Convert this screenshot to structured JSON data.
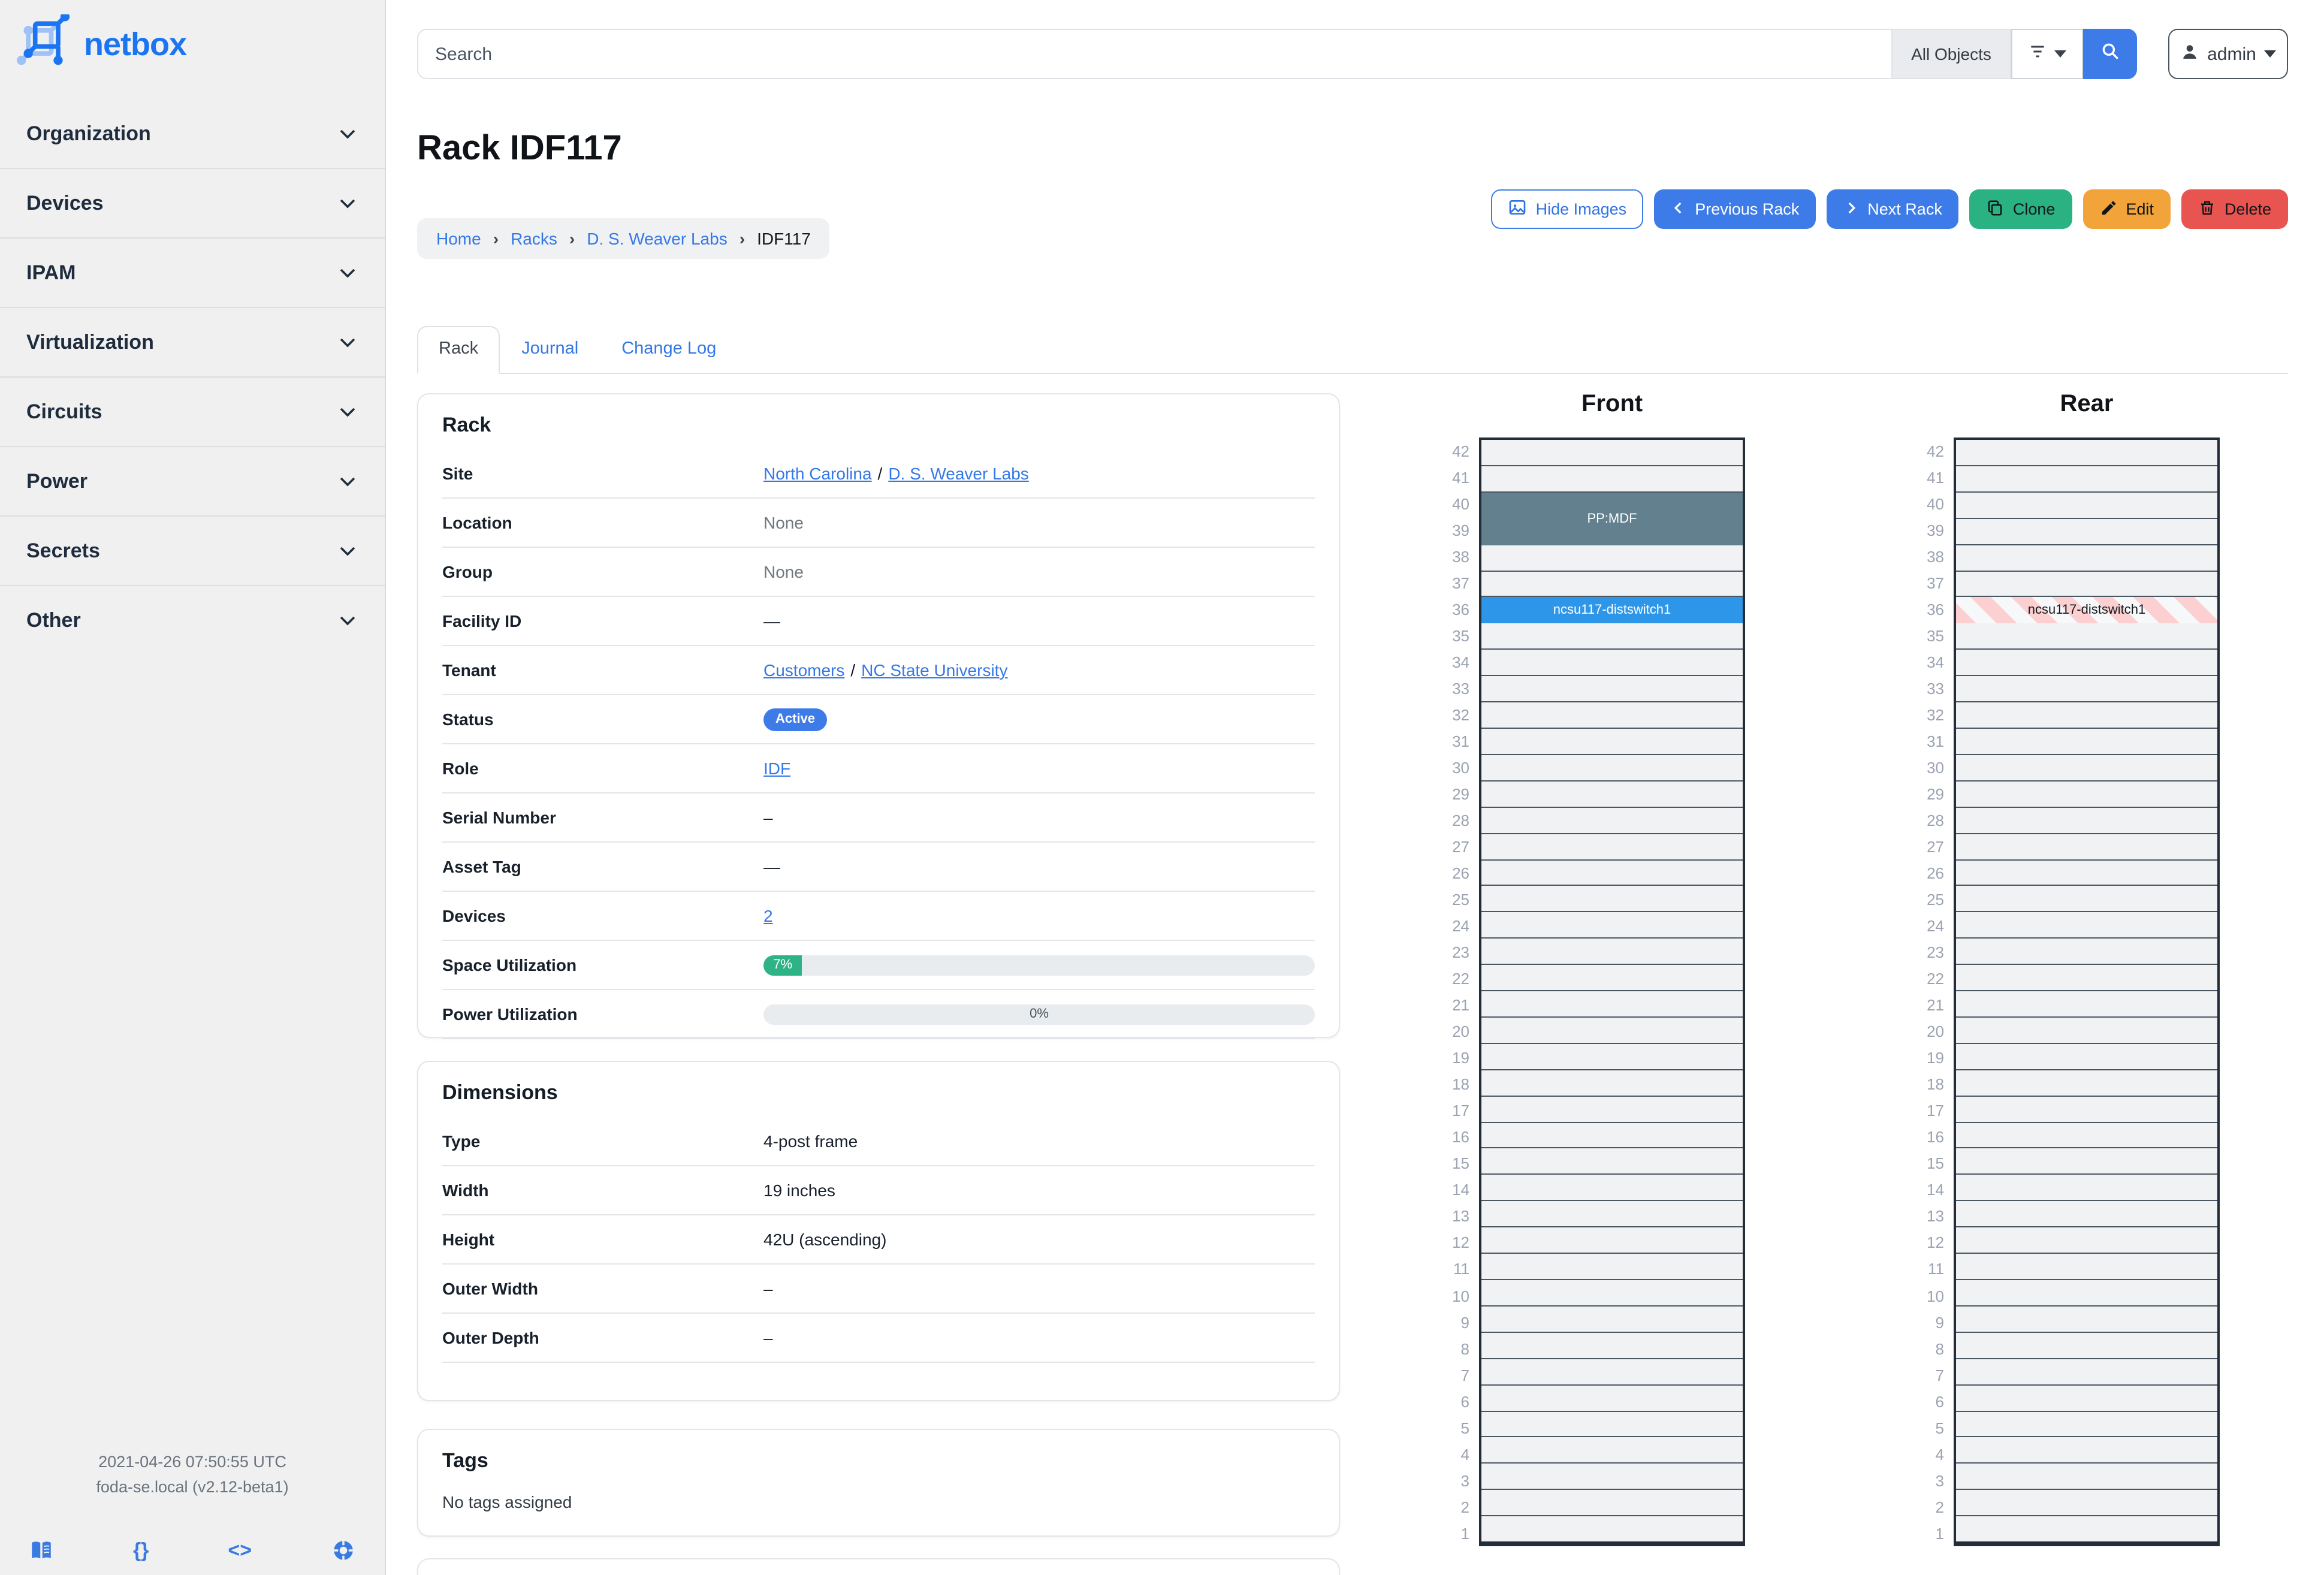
{
  "colors": {
    "primary": "#3d7ce8",
    "link": "#3478e6",
    "progress_green": "#2eb387",
    "clone_green": "#2bb283",
    "edit_orange": "#f2a33a",
    "delete_red": "#e8544f",
    "device_blue": "#2e96e8",
    "device_slate": "#62808e",
    "stripe_pink": "#fcd0d0"
  },
  "sidebar": {
    "logo_text": "netbox",
    "items": [
      {
        "label": "Organization"
      },
      {
        "label": "Devices"
      },
      {
        "label": "IPAM"
      },
      {
        "label": "Virtualization"
      },
      {
        "label": "Circuits"
      },
      {
        "label": "Power"
      },
      {
        "label": "Secrets"
      },
      {
        "label": "Other"
      }
    ],
    "footer": {
      "line1": "2021-04-26 07:50:55 UTC",
      "line2": "foda-se.local (v2.12-beta1)"
    }
  },
  "topbar": {
    "search_placeholder": "Search",
    "scope_label": "All Objects",
    "user_label": "admin"
  },
  "page": {
    "title": "Rack IDF117",
    "breadcrumb": [
      {
        "label": "Home",
        "link": true
      },
      {
        "label": "Racks",
        "link": true
      },
      {
        "label": "D. S. Weaver Labs",
        "link": true
      },
      {
        "label": "IDF117",
        "link": false
      }
    ]
  },
  "actions": {
    "hide_images": "Hide Images",
    "previous": "Previous Rack",
    "next": "Next Rack",
    "clone": "Clone",
    "edit": "Edit",
    "delete": "Delete"
  },
  "tabs": [
    {
      "label": "Rack",
      "active": true
    },
    {
      "label": "Journal",
      "active": false
    },
    {
      "label": "Change Log",
      "active": false
    }
  ],
  "rack_card": {
    "heading": "Rack",
    "rows": [
      {
        "label": "Site",
        "type": "links",
        "parts": [
          "North Carolina",
          "D. S. Weaver Labs"
        ]
      },
      {
        "label": "Location",
        "type": "muted",
        "value": "None"
      },
      {
        "label": "Group",
        "type": "muted",
        "value": "None"
      },
      {
        "label": "Facility ID",
        "type": "text",
        "value": "—"
      },
      {
        "label": "Tenant",
        "type": "links",
        "parts": [
          "Customers",
          "NC State University"
        ]
      },
      {
        "label": "Status",
        "type": "badge",
        "value": "Active"
      },
      {
        "label": "Role",
        "type": "links",
        "parts": [
          "IDF"
        ]
      },
      {
        "label": "Serial Number",
        "type": "text",
        "value": "–"
      },
      {
        "label": "Asset Tag",
        "type": "text",
        "value": "—"
      },
      {
        "label": "Devices",
        "type": "links",
        "parts": [
          "2"
        ]
      },
      {
        "label": "Space Utilization",
        "type": "progress",
        "percent": 7,
        "text": "7%"
      },
      {
        "label": "Power Utilization",
        "type": "progress",
        "percent": 0,
        "text": "0%"
      }
    ]
  },
  "dimensions_card": {
    "heading": "Dimensions",
    "rows": [
      {
        "label": "Type",
        "type": "text",
        "value": "4-post frame"
      },
      {
        "label": "Width",
        "type": "text",
        "value": "19 inches"
      },
      {
        "label": "Height",
        "type": "text",
        "value": "42U (ascending)"
      },
      {
        "label": "Outer Width",
        "type": "text",
        "value": "–"
      },
      {
        "label": "Outer Depth",
        "type": "text",
        "value": "–"
      }
    ]
  },
  "tags_card": {
    "heading": "Tags",
    "empty_text": "No tags assigned"
  },
  "elevations": {
    "units": 42,
    "front": {
      "title": "Front",
      "devices": [
        {
          "name": "PP:MDF",
          "top_unit": 40,
          "u_height": 2,
          "bg": "#62808e",
          "fg": "#ffffff"
        },
        {
          "name": "ncsu117-distswitch1",
          "top_unit": 36,
          "u_height": 1,
          "bg": "#2e96e8",
          "fg": "#ffffff"
        }
      ]
    },
    "rear": {
      "title": "Rear",
      "devices": [
        {
          "name": "ncsu117-distswitch1",
          "top_unit": 36,
          "u_height": 1,
          "striped": true,
          "fg": "#15191e"
        }
      ]
    }
  }
}
